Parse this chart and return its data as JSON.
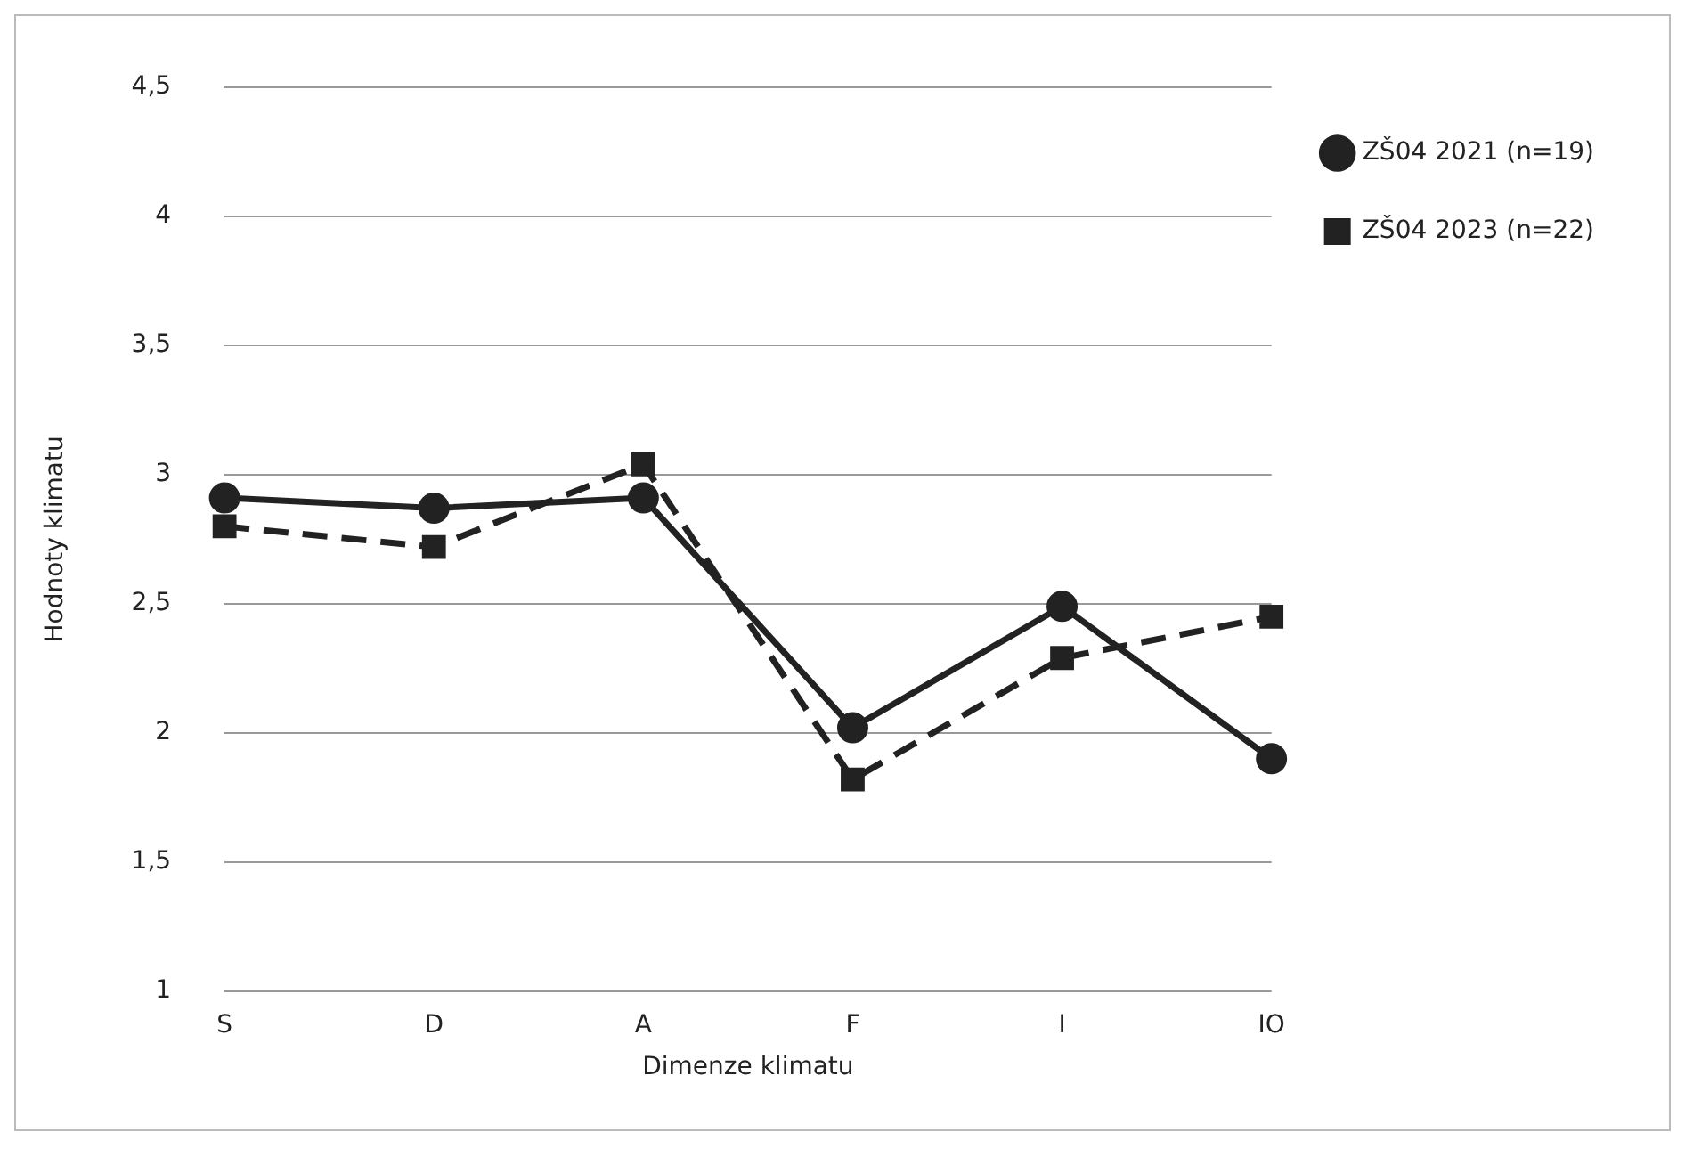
{
  "chart_data": {
    "type": "line",
    "xlabel": "Dimenze klimatu",
    "ylabel": "Hodnoty klimatu",
    "categories": [
      "S",
      "D",
      "A",
      "F",
      "I",
      "IO"
    ],
    "series": [
      {
        "name": "ZŠ04 2021 (n=19)",
        "color": "#222222",
        "values": [
          2.91,
          2.87,
          2.91,
          2.02,
          2.49,
          1.9
        ],
        "marker": "circle",
        "line_style": "solid"
      },
      {
        "name": "ZŠ04 2023 (n=22)",
        "color": "#222222",
        "values": [
          2.8,
          2.72,
          3.04,
          1.82,
          2.29,
          2.45
        ],
        "marker": "square",
        "line_style": "dashed"
      }
    ],
    "ylim": [
      1,
      4.5
    ],
    "yticks": [
      1,
      {
        "value": 1.5,
        "label": "1,5"
      },
      2,
      {
        "value": 2.5,
        "label": "2,5"
      },
      3,
      {
        "value": 3.5,
        "label": "3,5"
      },
      4,
      {
        "value": 4.5,
        "label": "4,5"
      }
    ],
    "grid": "y",
    "legend": "top right"
  }
}
